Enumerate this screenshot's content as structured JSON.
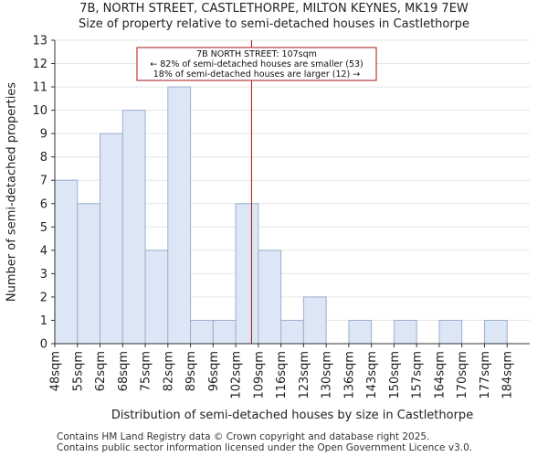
{
  "title_line1": "7B, NORTH STREET, CASTLETHORPE, MILTON KEYNES, MK19 7EW",
  "title_line2": "Size of property relative to semi-detached houses in Castlethorpe",
  "footer_line1": "Contains HM Land Registry data © Crown copyright and database right 2025.",
  "footer_line2": "Contains public sector information licensed under the Open Government Licence v3.0.",
  "chart_data": {
    "type": "bar",
    "title": "Size of property relative to semi-detached houses in Castlethorpe",
    "xlabel": "Distribution of semi-detached houses by size in Castlethorpe",
    "ylabel": "Number of semi-detached properties",
    "categories": [
      "48sqm",
      "55sqm",
      "62sqm",
      "68sqm",
      "75sqm",
      "82sqm",
      "89sqm",
      "96sqm",
      "102sqm",
      "109sqm",
      "116sqm",
      "123sqm",
      "130sqm",
      "136sqm",
      "143sqm",
      "150sqm",
      "157sqm",
      "164sqm",
      "170sqm",
      "177sqm",
      "184sqm"
    ],
    "values": [
      7,
      6,
      9,
      10,
      4,
      11,
      1,
      1,
      6,
      4,
      1,
      2,
      0,
      1,
      0,
      1,
      0,
      1,
      0,
      1,
      0
    ],
    "ylim": [
      0,
      13
    ],
    "yticks": [
      0,
      1,
      2,
      3,
      4,
      5,
      6,
      7,
      8,
      9,
      10,
      11,
      12,
      13
    ],
    "marker": {
      "value_sqm": 107,
      "position_bins": 8.7
    },
    "annotation": {
      "line1": "7B NORTH STREET: 107sqm",
      "line2": "← 82% of semi-detached houses are smaller (53)",
      "line3": "18% of semi-detached houses are larger (12) →"
    },
    "colors": {
      "bar_fill": "#dce6f5",
      "bar_stroke": "#9ab0d0",
      "marker": "#aa1111",
      "axis": "#333333"
    }
  }
}
